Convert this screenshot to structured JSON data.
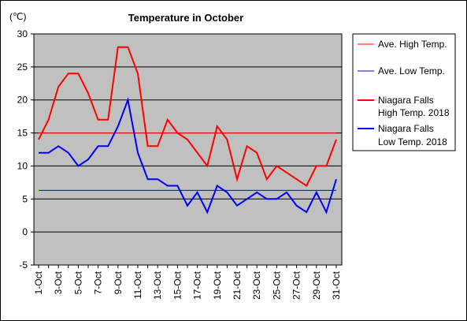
{
  "chart_data": {
    "type": "line",
    "title": "Temperature in October",
    "unit_label": "(℃)",
    "ylim": [
      -5,
      30
    ],
    "y_ticks": [
      -5,
      0,
      5,
      10,
      15,
      20,
      25,
      30
    ],
    "grid": true,
    "legend_position": "right",
    "x": [
      "1-Oct",
      "2-Oct",
      "3-Oct",
      "4-Oct",
      "5-Oct",
      "6-Oct",
      "7-Oct",
      "8-Oct",
      "9-Oct",
      "10-Oct",
      "11-Oct",
      "12-Oct",
      "13-Oct",
      "14-Oct",
      "15-Oct",
      "16-Oct",
      "17-Oct",
      "18-Oct",
      "19-Oct",
      "20-Oct",
      "21-Oct",
      "22-Oct",
      "23-Oct",
      "24-Oct",
      "25-Oct",
      "26-Oct",
      "27-Oct",
      "28-Oct",
      "29-Oct",
      "30-Oct",
      "31-Oct"
    ],
    "x_tick_labels": [
      "1-Oct",
      "3-Oct",
      "5-Oct",
      "7-Oct",
      "9-Oct",
      "11-Oct",
      "13-Oct",
      "15-Oct",
      "17-Oct",
      "19-Oct",
      "21-Oct",
      "23-Oct",
      "25-Oct",
      "27-Oct",
      "29-Oct",
      "31-Oct"
    ],
    "series": [
      {
        "name": "Ave. High Temp.",
        "color": "#ff0000",
        "width": 1,
        "values": [
          15,
          15,
          15,
          15,
          15,
          15,
          15,
          15,
          15,
          15,
          15,
          15,
          15,
          15,
          15,
          15,
          15,
          15,
          15,
          15,
          15,
          15,
          15,
          15,
          15,
          15,
          15,
          15,
          15,
          15,
          15
        ]
      },
      {
        "name": "Ave. Low Temp.",
        "color": "#0000ff",
        "width": 1,
        "values": [
          6.3,
          6.3,
          6.3,
          6.3,
          6.3,
          6.3,
          6.3,
          6.3,
          6.3,
          6.3,
          6.3,
          6.3,
          6.3,
          6.3,
          6.3,
          6.3,
          6.3,
          6.3,
          6.3,
          6.3,
          6.3,
          6.3,
          6.3,
          6.3,
          6.3,
          6.3,
          6.3,
          6.3,
          6.3,
          6.3,
          6.3
        ]
      },
      {
        "name": "Niagara Falls High Temp. 2018",
        "legend_lines": [
          "Niagara Falls",
          "High Temp. 2018"
        ],
        "color": "#ff0000",
        "width": 2,
        "values": [
          14,
          17,
          22,
          24,
          24,
          21,
          17,
          17,
          28,
          28,
          24,
          13,
          13,
          17,
          15,
          14,
          12,
          10,
          16,
          14,
          8,
          13,
          12,
          8,
          10,
          9,
          8,
          7,
          10,
          10,
          14
        ]
      },
      {
        "name": "Niagara Falls Low Temp. 2018",
        "legend_lines": [
          "Niagara Falls",
          "Low Temp. 2018"
        ],
        "color": "#0000ff",
        "width": 2,
        "values": [
          12,
          12,
          13,
          12,
          10,
          11,
          13,
          13,
          16,
          20,
          12,
          8,
          8,
          7,
          7,
          4,
          6,
          3,
          7,
          6,
          4,
          5,
          6,
          5,
          5,
          6,
          4,
          3,
          6,
          3,
          8
        ]
      }
    ]
  }
}
